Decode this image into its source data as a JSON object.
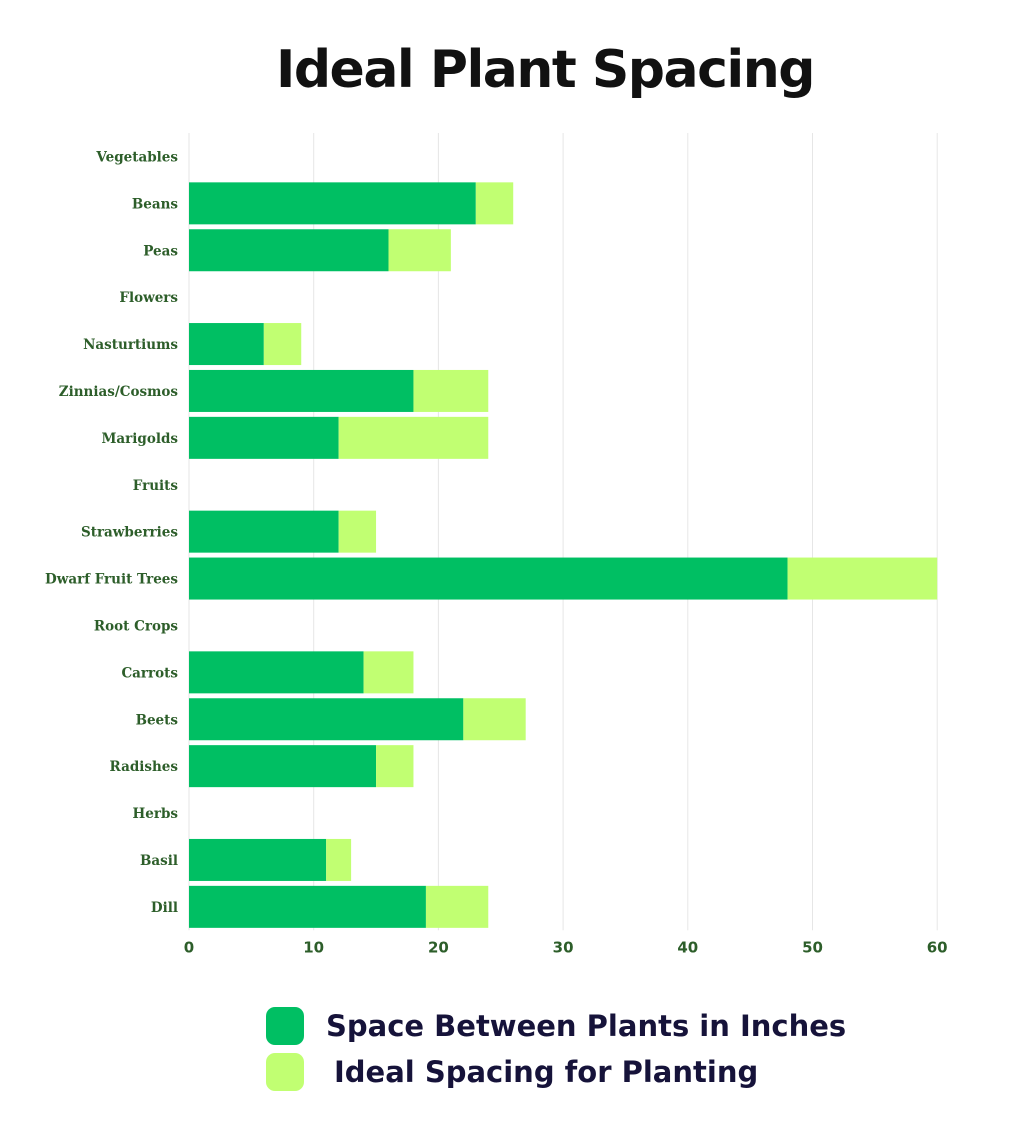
{
  "chart_data": {
    "type": "bar",
    "orientation": "horizontal",
    "stacked": true,
    "title": "Ideal Plant Spacing",
    "categories": [
      "Vegetables",
      "Beans",
      "Peas",
      "Flowers",
      "Nasturtiums",
      "Zinnias/Cosmos",
      "Marigolds",
      "Fruits",
      "Strawberries",
      "Dwarf Fruit Trees",
      "Root Crops",
      "Carrots",
      "Beets",
      "Radishes",
      "Herbs",
      "Basil",
      "Dill"
    ],
    "series": [
      {
        "name": "Space Between Plants in Inches",
        "color": "#00bf63",
        "values": [
          0,
          23,
          16,
          0,
          6,
          18,
          12,
          0,
          12,
          48,
          0,
          14,
          22,
          15,
          0,
          11,
          19
        ]
      },
      {
        "name": "Ideal Spacing for Planting",
        "color": "#c1ff72",
        "values": [
          0,
          3,
          5,
          0,
          3,
          6,
          12,
          0,
          3,
          12,
          0,
          4,
          5,
          3,
          0,
          2,
          5
        ]
      }
    ],
    "xlim": [
      0,
      60
    ],
    "xticks": [
      0,
      10,
      20,
      30,
      40,
      50,
      60
    ],
    "grid": true,
    "legend_position": "bottom"
  }
}
